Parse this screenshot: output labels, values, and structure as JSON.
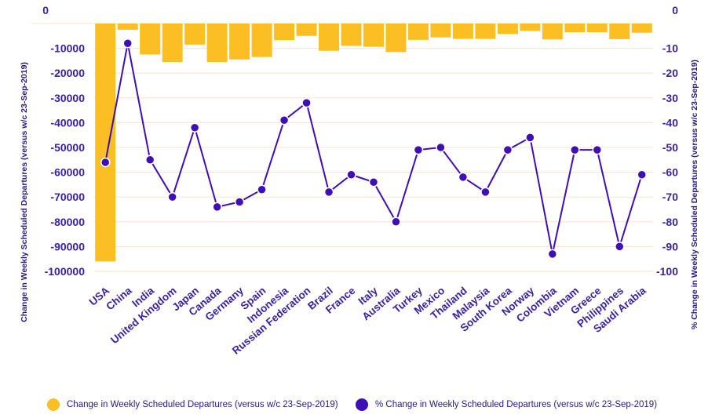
{
  "chart_data": {
    "type": "bar+line",
    "categories": [
      "USA",
      "China",
      "India",
      "United Kingdom",
      "Japan",
      "Canada",
      "Germany",
      "Spain",
      "Indonesia",
      "Russian Federation",
      "Brazil",
      "France",
      "Italy",
      "Australia",
      "Turkey",
      "Mexico",
      "Thailand",
      "Malaysia",
      "South Korea",
      "Norway",
      "Colombia",
      "Vietnam",
      "Greece",
      "Philippines",
      "Saudi Arabia"
    ],
    "series": [
      {
        "name": "Change in Weekly Scheduled Departures (versus w/c 23-Sep-2019)",
        "type": "bar",
        "axis": "left",
        "color": "#fbbf24",
        "values": [
          -96000,
          -2500,
          -12500,
          -15500,
          -8500,
          -15500,
          -14500,
          -13500,
          -6700,
          -5000,
          -11000,
          -9000,
          -9400,
          -11500,
          -6600,
          -5600,
          -6200,
          -6200,
          -4200,
          -3000,
          -6400,
          -3500,
          -3500,
          -6300,
          -3700
        ]
      },
      {
        "name": "% Change in Weekly Scheduled Departures (versus w/c 23-Sep-2019)",
        "type": "line",
        "axis": "right",
        "color": "#3d0fb5",
        "values": [
          -56,
          -8,
          -55,
          -70,
          -42,
          -74,
          -72,
          -67,
          -39,
          -32,
          -68,
          -61,
          -64,
          -80,
          -51,
          -50,
          -62,
          -68,
          -51,
          -46,
          -93,
          -51,
          -51,
          -90,
          -61
        ]
      }
    ],
    "y_left": {
      "label": "Change in Weekly Scheduled Departures (versus w/c 23-Sep-2019)",
      "range": [
        -100000,
        0
      ],
      "ticks": [
        0,
        -10000,
        -20000,
        -30000,
        -40000,
        -50000,
        -60000,
        -70000,
        -80000,
        -90000,
        -100000
      ]
    },
    "y_right": {
      "label": "% Change in Weekly Scheduled Departures (versus w/c 23-Sep-2019)",
      "range": [
        -100,
        0
      ],
      "ticks": [
        0,
        -10,
        -20,
        -30,
        -40,
        -50,
        -60,
        -70,
        -80,
        -90,
        -100
      ]
    },
    "grid": true,
    "legend_position": "bottom",
    "title": ""
  },
  "legend": {
    "bar_label": "Change in Weekly Scheduled Departures (versus w/c 23-Sep-2019)",
    "line_label": "% Change in Weekly Scheduled Departures (versus w/c 23-Sep-2019)",
    "bar_color": "#fbbf24",
    "line_color": "#3d0fb5"
  }
}
